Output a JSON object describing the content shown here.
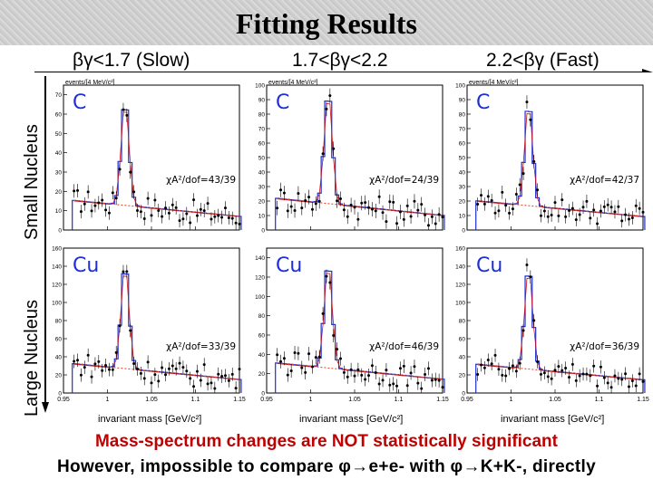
{
  "title": "Fitting Results",
  "columns": [
    {
      "label": "βγ<1.7 (Slow)"
    },
    {
      "label": "1.7<βγ<2.2"
    },
    {
      "label": "2.2<βγ (Fast)"
    }
  ],
  "rows": [
    {
      "label": "Small Nucleus",
      "target": "C"
    },
    {
      "label": "Large Nucleus",
      "target": "Cu"
    }
  ],
  "colors": {
    "histogram": "#1f2fd6",
    "fit": "#d01010",
    "background_fit": "#e04020",
    "accent": "#c00000"
  },
  "footer": {
    "line1": "Mass-spectrum changes are NOT statistically significant",
    "line2": "However, impossible to compare φ→e+e- with φ→K+K-, directly"
  },
  "chart_data": [
    {
      "type": "bar",
      "target": "C",
      "bin": "βγ<1.7 (Slow)",
      "title": "",
      "xlabel": "",
      "ylabel": "events/[4 MeV/c²]",
      "x_ticks": [
        "0.95",
        "1",
        "1.05",
        "1.1",
        "1.15"
      ],
      "xlim": [
        0.95,
        1.15
      ],
      "ylim": [
        0,
        75
      ],
      "y_ticks": [
        0,
        10,
        20,
        30,
        40,
        50,
        60,
        70
      ],
      "fit_label": "χA²/dof=43/39",
      "peak_mass": 1.02,
      "peak_value": 70
    },
    {
      "type": "bar",
      "target": "C",
      "bin": "1.7<βγ<2.2",
      "title": "",
      "xlabel": "",
      "ylabel": "events/[4 MeV/c²]",
      "x_ticks": [
        "0.95",
        "1",
        "1.05",
        "1.1",
        "1.15"
      ],
      "xlim": [
        0.95,
        1.15
      ],
      "ylim": [
        0,
        100
      ],
      "y_ticks": [
        0,
        10,
        20,
        30,
        40,
        50,
        60,
        70,
        80,
        90,
        100
      ],
      "fit_label": "χA²/dof=24/39",
      "peak_mass": 1.02,
      "peak_value": 100
    },
    {
      "type": "bar",
      "target": "C",
      "bin": "2.2<βγ (Fast)",
      "title": "",
      "xlabel": "",
      "ylabel": "events/[4 MeV/c²]",
      "x_ticks": [
        "0.95",
        "1",
        "1.05",
        "1.1",
        "1.15"
      ],
      "xlim": [
        0.95,
        1.15
      ],
      "ylim": [
        0,
        100
      ],
      "y_ticks": [
        0,
        10,
        20,
        30,
        40,
        50,
        60,
        70,
        80,
        90,
        100
      ],
      "fit_label": "χA²/dof=42/37",
      "peak_mass": 1.02,
      "peak_value": 92
    },
    {
      "type": "bar",
      "target": "Cu",
      "bin": "βγ<1.7 (Slow)",
      "title": "",
      "xlabel": "invariant mass [GeV/c²]",
      "ylabel": "",
      "x_ticks": [
        "0.95",
        "1",
        "1.05",
        "1.1",
        "1.15"
      ],
      "xlim": [
        0.95,
        1.15
      ],
      "ylim": [
        0,
        160
      ],
      "y_ticks": [
        0,
        20,
        40,
        60,
        80,
        100,
        120,
        140,
        160
      ],
      "fit_label": "χA²/dof=33/39",
      "peak_mass": 1.02,
      "peak_value": 148
    },
    {
      "type": "bar",
      "target": "Cu",
      "bin": "1.7<βγ<2.2",
      "title": "",
      "xlabel": "invariant mass [GeV/c²]",
      "ylabel": "",
      "x_ticks": [
        "0.95",
        "1",
        "1.05",
        "1.1",
        "1.15"
      ],
      "xlim": [
        0.95,
        1.15
      ],
      "ylim": [
        0,
        150
      ],
      "y_ticks": [
        0,
        20,
        40,
        60,
        80,
        100,
        120,
        140
      ],
      "fit_label": "χA²/dof=46/39",
      "peak_mass": 1.02,
      "peak_value": 142
    },
    {
      "type": "bar",
      "target": "Cu",
      "bin": "2.2<βγ (Fast)",
      "title": "",
      "xlabel": "invariant mass [GeV/c²]",
      "ylabel": "",
      "x_ticks": [
        "0.95",
        "1",
        "1.05",
        "1.1",
        "1.15"
      ],
      "xlim": [
        0.95,
        1.15
      ],
      "ylim": [
        0,
        160
      ],
      "y_ticks": [
        0,
        20,
        40,
        60,
        80,
        100,
        120,
        140,
        160
      ],
      "fit_label": "χA²/dof=36/39",
      "peak_mass": 1.02,
      "peak_value": 145
    }
  ]
}
